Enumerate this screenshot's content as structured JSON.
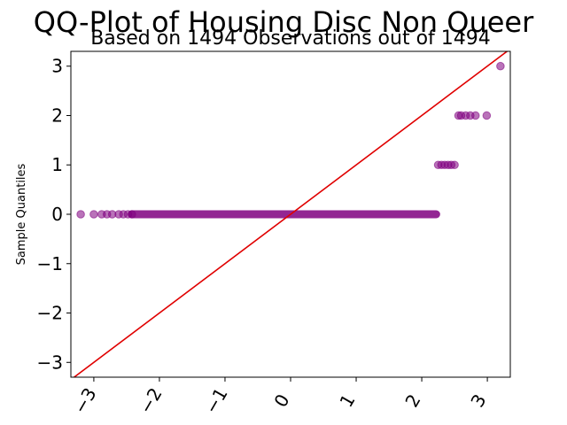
{
  "chart_data": {
    "type": "scatter",
    "title": "QQ-Plot of Housing Disc Non Queer",
    "subtitle": "Based on 1494 Observations out of 1494",
    "xlabel": "",
    "ylabel": "Sample Quantiles",
    "xlim": [
      -3.35,
      3.35
    ],
    "ylim": [
      -3.3,
      3.3
    ],
    "x_ticks": [
      -3,
      -2,
      -1,
      0,
      1,
      2,
      3
    ],
    "x_tick_labels": [
      "−3",
      "−2",
      "−1",
      "0",
      "1",
      "2",
      "3"
    ],
    "y_ticks": [
      -3,
      -2,
      -1,
      0,
      1,
      2,
      3
    ],
    "y_tick_labels": [
      "−3",
      "−2",
      "−1",
      "0",
      "1",
      "2",
      "3"
    ],
    "grid": false,
    "series": [
      {
        "marker_color": "#800080",
        "marker_opacity": 0.55,
        "points": [
          {
            "x": -3.2,
            "y": 0
          },
          {
            "x": -3.0,
            "y": 0
          },
          {
            "x": -2.88,
            "y": 0
          },
          {
            "x": -2.8,
            "y": 0
          },
          {
            "x": -2.72,
            "y": 0
          },
          {
            "x": -2.62,
            "y": 0
          },
          {
            "x": -2.55,
            "y": 0
          },
          {
            "x": -2.48,
            "y": 0
          },
          {
            "x": -2.42,
            "y": 0
          },
          {
            "x": 2.25,
            "y": 1
          },
          {
            "x": 2.3,
            "y": 1
          },
          {
            "x": 2.35,
            "y": 1
          },
          {
            "x": 2.4,
            "y": 1
          },
          {
            "x": 2.45,
            "y": 1
          },
          {
            "x": 2.5,
            "y": 1
          },
          {
            "x": 2.56,
            "y": 2
          },
          {
            "x": 2.6,
            "y": 2
          },
          {
            "x": 2.67,
            "y": 2
          },
          {
            "x": 2.74,
            "y": 2
          },
          {
            "x": 2.82,
            "y": 2
          },
          {
            "x": 2.99,
            "y": 2
          },
          {
            "x": 3.2,
            "y": 3
          }
        ],
        "dense_segments": [
          {
            "x_start": -2.42,
            "x_end": 2.22,
            "y": 0
          }
        ]
      }
    ],
    "reference_line": {
      "color": "#e00000",
      "slope": 1,
      "intercept": 0
    }
  }
}
